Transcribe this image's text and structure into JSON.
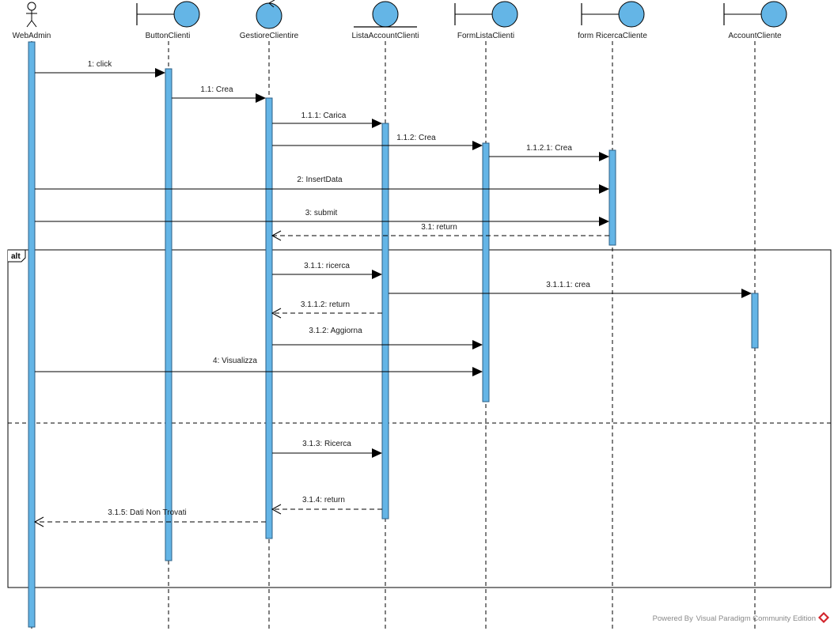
{
  "diagram": {
    "kind": "UML sequence diagram",
    "colors": {
      "activation_fill": "#64b5e6",
      "activation_stroke": "#2b5f85",
      "icon_fill": "#64b5e6",
      "line": "#000000",
      "footer_text": "#8a8a8a",
      "footer_logo": "#d2232a"
    },
    "participants": [
      {
        "id": "webadmin",
        "label": "WebAdmin",
        "stereotype": "actor"
      },
      {
        "id": "buttonclienti",
        "label": "ButtonClienti",
        "stereotype": "boundary"
      },
      {
        "id": "gestore",
        "label": "GestioreClientire",
        "stereotype": "control"
      },
      {
        "id": "lista",
        "label": "ListaAccountClienti",
        "stereotype": "entity"
      },
      {
        "id": "formlista",
        "label": "FormListaClienti",
        "stereotype": "boundary"
      },
      {
        "id": "formricerca",
        "label": "form RicercaCliente",
        "stereotype": "boundary"
      },
      {
        "id": "account",
        "label": "AccountCliente",
        "stereotype": "boundary"
      }
    ],
    "messages": [
      {
        "label": "1: click",
        "from": "webadmin",
        "to": "buttonclienti",
        "kind": "sync"
      },
      {
        "label": "1.1: Crea",
        "from": "buttonclienti",
        "to": "gestore",
        "kind": "sync"
      },
      {
        "label": "1.1.1: Carica",
        "from": "gestore",
        "to": "lista",
        "kind": "sync"
      },
      {
        "label": "1.1.2: Crea",
        "from": "gestore",
        "to": "formlista",
        "kind": "sync"
      },
      {
        "label": "1.1.2.1: Crea",
        "from": "formlista",
        "to": "formricerca",
        "kind": "sync"
      },
      {
        "label": "2: InsertData",
        "from": "webadmin",
        "to": "formricerca",
        "kind": "sync"
      },
      {
        "label": "3: submit",
        "from": "webadmin",
        "to": "formricerca",
        "kind": "sync"
      },
      {
        "label": "3.1: return",
        "from": "formricerca",
        "to": "gestore",
        "kind": "return"
      },
      {
        "label": "3.1.1: ricerca",
        "from": "gestore",
        "to": "lista",
        "kind": "sync"
      },
      {
        "label": "3.1.1.1: crea",
        "from": "lista",
        "to": "account",
        "kind": "sync"
      },
      {
        "label": "3.1.1.2: return",
        "from": "lista",
        "to": "gestore",
        "kind": "return"
      },
      {
        "label": "3.1.2: Aggiorna",
        "from": "gestore",
        "to": "formlista",
        "kind": "sync"
      },
      {
        "label": "4: Visualizza",
        "from": "webadmin",
        "to": "formlista",
        "kind": "sync"
      },
      {
        "label": "3.1.3: Ricerca",
        "from": "gestore",
        "to": "lista",
        "kind": "sync"
      },
      {
        "label": "3.1.4: return",
        "from": "lista",
        "to": "gestore",
        "kind": "return"
      },
      {
        "label": "3.1.5: Dati Non Trovati",
        "from": "gestore",
        "to": "webadmin",
        "kind": "return"
      }
    ],
    "fragment": {
      "operator": "alt"
    },
    "footer": "Powered By  Visual Paradigm Community Edition"
  }
}
